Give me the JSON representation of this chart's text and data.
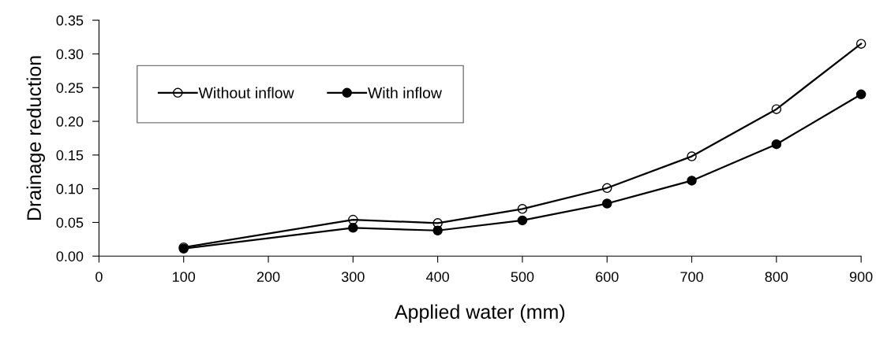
{
  "chart_data": {
    "type": "line",
    "xlabel": "Applied water (mm)",
    "ylabel": "Drainage reduction",
    "x": [
      100,
      300,
      400,
      500,
      600,
      700,
      800,
      900
    ],
    "series": [
      {
        "name": "Without inflow",
        "color": "#000000",
        "marker": "open circle",
        "values": [
          0.013,
          0.054,
          0.049,
          0.07,
          0.101,
          0.148,
          0.218,
          0.315
        ]
      },
      {
        "name": "With inflow",
        "color": "#000000",
        "marker": "circle",
        "values": [
          0.011,
          0.042,
          0.038,
          0.053,
          0.078,
          0.112,
          0.166,
          0.24
        ]
      }
    ],
    "xlim": [
      0,
      900
    ],
    "xticks": [
      0,
      100,
      200,
      300,
      400,
      500,
      600,
      700,
      800,
      900
    ],
    "ylim": [
      0,
      0.35
    ],
    "yticks": [
      {
        "value": 0,
        "label": "0.00"
      },
      {
        "value": 0.05,
        "label": "0.05"
      },
      {
        "value": 0.1,
        "label": "0.10"
      },
      {
        "value": 0.15,
        "label": "0.15"
      },
      {
        "value": 0.2,
        "label": "0.20"
      },
      {
        "value": 0.25,
        "label": "0.25"
      },
      {
        "value": 0.3,
        "label": "0.30"
      },
      {
        "value": 0.35,
        "label": "0.35"
      }
    ],
    "grid": false,
    "legend": "top left",
    "line_style": "solid"
  }
}
